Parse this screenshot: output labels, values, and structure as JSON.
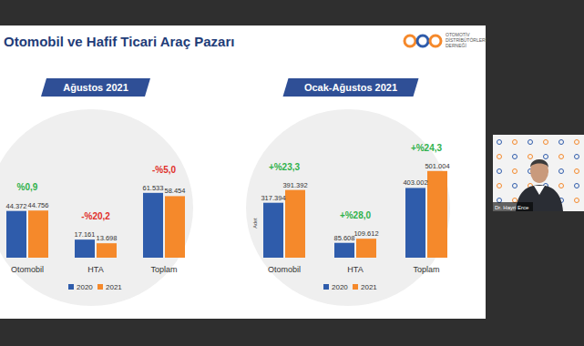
{
  "header": {
    "title": "Otomobil ve Hafif Ticari Araç Pazarı"
  },
  "logo": {
    "text": [
      "OTOMOTİV",
      "DİSTRİBÜTÖRLERİ",
      "DERNEĞİ"
    ]
  },
  "video": {
    "name": "Dr. Hayri Erce"
  },
  "chart_data": [
    {
      "type": "bar",
      "title": "Ağustos 2021",
      "categories": [
        "Otomobil",
        "HTA",
        "Toplam"
      ],
      "series": [
        {
          "name": "2020",
          "color": "#2f5cab",
          "values": [
            44372,
            17161,
            61533
          ],
          "value_labels": [
            "44.372",
            "17.161",
            "61.533"
          ]
        },
        {
          "name": "2021",
          "color": "#f5892b",
          "values": [
            44756,
            13698,
            58454
          ],
          "value_labels": [
            "44.756",
            "13.698",
            "58.454"
          ]
        }
      ],
      "annotations": [
        "%0,9",
        "-%20,2",
        "-%5,0"
      ],
      "ylim": [
        0,
        115000
      ],
      "tick_labels": false,
      "grid": false,
      "legend": "bottom",
      "data_labels": true
    },
    {
      "type": "bar",
      "title": "Ocak-Ağustos 2021",
      "y_label": "Adet",
      "categories": [
        "Otomobil",
        "HTA",
        "Toplam"
      ],
      "series": [
        {
          "name": "2020",
          "color": "#2f5cab",
          "values": [
            317394,
            85608,
            403002
          ],
          "value_labels": [
            "317.394",
            "85.608",
            "403.002"
          ]
        },
        {
          "name": "2021",
          "color": "#f5892b",
          "values": [
            391392,
            109612,
            501004
          ],
          "value_labels": [
            "391.392",
            "109.612",
            "501.004"
          ]
        }
      ],
      "annotations": [
        "+%23,3",
        "+%28,0",
        "+%24,3"
      ],
      "ylim": [
        0,
        700000
      ],
      "tick_labels": false,
      "grid": false,
      "legend": "bottom",
      "data_labels": true
    }
  ]
}
